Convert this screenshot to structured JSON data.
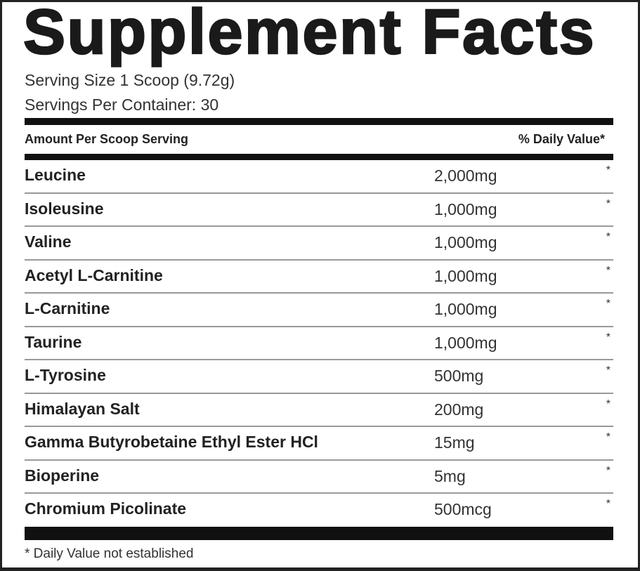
{
  "title": "Supplement Facts",
  "serving_size": "Serving Size 1 Scoop (9.72g)",
  "servings_per_container": "Servings Per Container: 30",
  "header": {
    "amount_label": "Amount Per Scoop Serving",
    "dv_label": "% Daily Value*"
  },
  "ingredients": [
    {
      "name": "Leucine",
      "amount": "2,000mg",
      "dv": "*"
    },
    {
      "name": "Isoleusine",
      "amount": "1,000mg",
      "dv": "*"
    },
    {
      "name": "Valine",
      "amount": "1,000mg",
      "dv": "*"
    },
    {
      "name": "Acetyl L-Carnitine",
      "amount": "1,000mg",
      "dv": "*"
    },
    {
      "name": "L-Carnitine",
      "amount": "1,000mg",
      "dv": "*"
    },
    {
      "name": "Taurine",
      "amount": "1,000mg",
      "dv": "*"
    },
    {
      "name": "L-Tyrosine",
      "amount": "500mg",
      "dv": "*"
    },
    {
      "name": "Himalayan Salt",
      "amount": "200mg",
      "dv": "*"
    },
    {
      "name": "Gamma Butyrobetaine Ethyl Ester HCl",
      "amount": "15mg",
      "dv": "*"
    },
    {
      "name": "Bioperine",
      "amount": "5mg",
      "dv": "*"
    },
    {
      "name": "Chromium Picolinate",
      "amount": "500mcg",
      "dv": "*"
    }
  ],
  "footnote": "* Daily Value not established"
}
